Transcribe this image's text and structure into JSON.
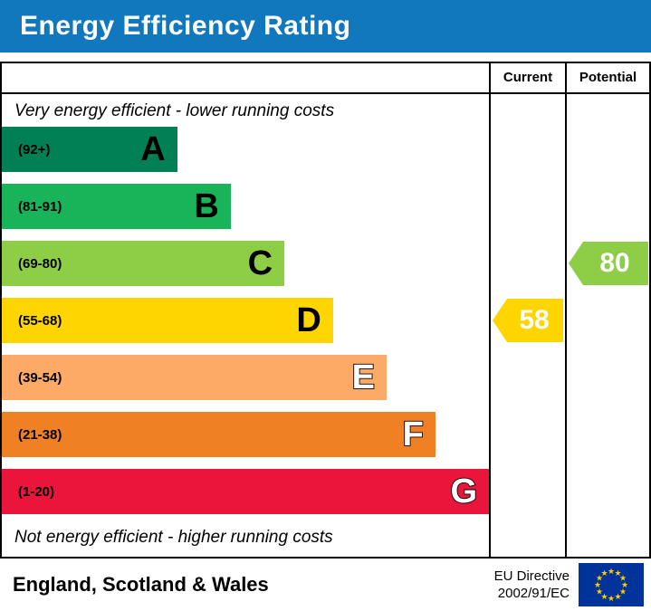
{
  "header": {
    "title": "Energy Efficiency Rating",
    "bg_color": "#1278be"
  },
  "columns": {
    "current_label": "Current",
    "potential_label": "Potential"
  },
  "chart_data": {
    "type": "bar",
    "title": "Energy Efficiency Rating",
    "captions": {
      "top": "Very energy efficient - lower running costs",
      "bottom": "Not energy efficient - higher running costs"
    },
    "bands": [
      {
        "letter": "A",
        "range": "(92+)",
        "low": 92,
        "high": 100,
        "color": "#008054",
        "width_pct": 36,
        "letter_style": "dark"
      },
      {
        "letter": "B",
        "range": "(81-91)",
        "low": 81,
        "high": 91,
        "color": "#19b459",
        "width_pct": 47,
        "letter_style": "dark"
      },
      {
        "letter": "C",
        "range": "(69-80)",
        "low": 69,
        "high": 80,
        "color": "#8dce46",
        "width_pct": 58,
        "letter_style": "dark"
      },
      {
        "letter": "D",
        "range": "(55-68)",
        "low": 55,
        "high": 68,
        "color": "#ffd500",
        "width_pct": 68,
        "letter_style": "dark"
      },
      {
        "letter": "E",
        "range": "(39-54)",
        "low": 39,
        "high": 54,
        "color": "#fcaa65",
        "width_pct": 79,
        "letter_style": "outline"
      },
      {
        "letter": "F",
        "range": "(21-38)",
        "low": 21,
        "high": 38,
        "color": "#ef8023",
        "width_pct": 89,
        "letter_style": "outline"
      },
      {
        "letter": "G",
        "range": "(1-20)",
        "low": 1,
        "high": 20,
        "color": "#e9153b",
        "width_pct": 100,
        "letter_style": "outline"
      }
    ],
    "current": {
      "value": 58,
      "band": "D",
      "color": "#ffd500"
    },
    "potential": {
      "value": 80,
      "band": "C",
      "color": "#8dce46"
    }
  },
  "footer": {
    "region": "England, Scotland & Wales",
    "directive_line1": "EU Directive",
    "directive_line2": "2002/91/EC",
    "flag": {
      "bg": "#003399",
      "star_color": "#ffcc00"
    }
  }
}
